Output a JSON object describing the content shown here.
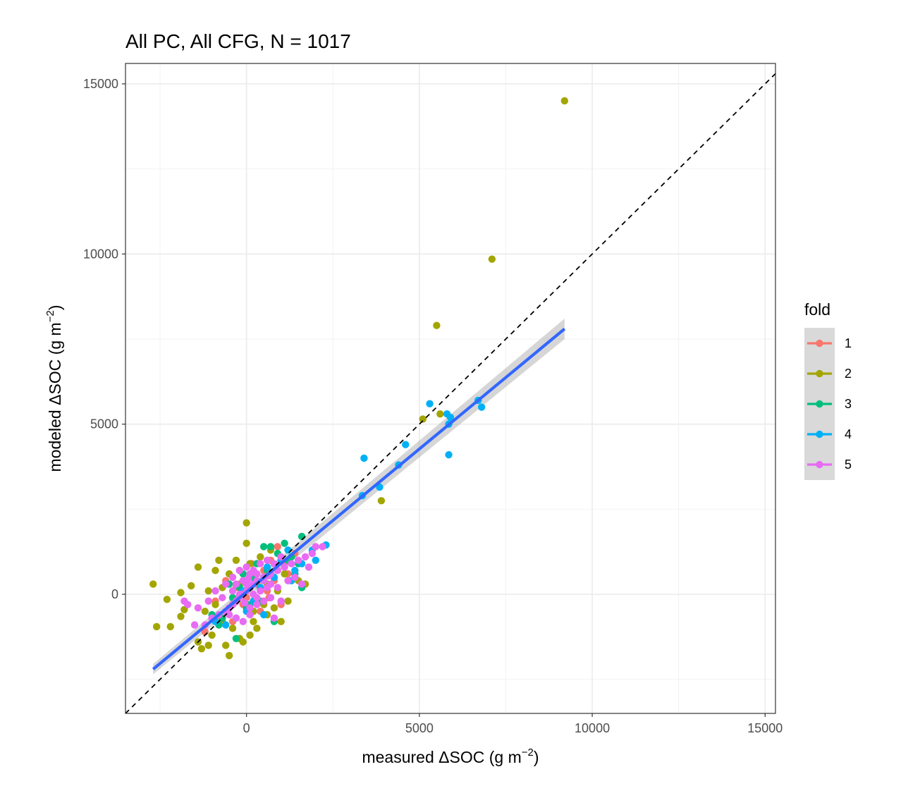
{
  "chart_data": {
    "type": "scatter",
    "title": "All PC, All CFG,  N = 1017",
    "xlabel": {
      "main": "measured ΔSOC (g m",
      "sup": "−2",
      "tail": ")"
    },
    "ylabel": {
      "main": "modeled ΔSOC (g m",
      "sup": "−2",
      "tail": ")"
    },
    "xlim": [
      -3500,
      15300
    ],
    "ylim": [
      -3500,
      15600
    ],
    "x_ticks": [
      0,
      5000,
      10000,
      15000
    ],
    "y_ticks": [
      0,
      5000,
      10000,
      15000
    ],
    "x_tick_labels": [
      "0",
      "5000",
      "10000",
      "15000"
    ],
    "y_tick_labels": [
      "0",
      "5000",
      "10000",
      "15000"
    ],
    "grid": true,
    "legend": {
      "title": "fold",
      "position": "right"
    },
    "reference_line": {
      "type": "1:1",
      "style": "dashed",
      "color": "#000000"
    },
    "fit_line": {
      "x": [
        -2700,
        9200
      ],
      "y": [
        -2200,
        7800
      ],
      "ci_halfwidth_at_ends": [
        150,
        300
      ],
      "color": "#3366FF"
    },
    "series": [
      {
        "name": "1",
        "color": "#F8766D",
        "points": [
          [
            -1200,
            -1100
          ],
          [
            -800,
            -700
          ],
          [
            -500,
            -400
          ],
          [
            -300,
            200
          ],
          [
            -100,
            -300
          ],
          [
            100,
            500
          ],
          [
            200,
            -200
          ],
          [
            300,
            300
          ],
          [
            500,
            700
          ],
          [
            600,
            100
          ],
          [
            700,
            1000
          ],
          [
            800,
            400
          ],
          [
            900,
            1400
          ],
          [
            1100,
            900
          ],
          [
            1200,
            600
          ],
          [
            1400,
            1200
          ],
          [
            -600,
            400
          ],
          [
            0,
            -100
          ],
          [
            400,
            -500
          ],
          [
            -900,
            -200
          ],
          [
            1000,
            -300
          ],
          [
            -200,
            700
          ],
          [
            150,
            900
          ],
          [
            -400,
            -800
          ],
          [
            650,
            -100
          ]
        ]
      },
      {
        "name": "2",
        "color": "#A3A500",
        "points": [
          [
            9200,
            14500
          ],
          [
            7100,
            9850
          ],
          [
            5500,
            7900
          ],
          [
            5100,
            5150
          ],
          [
            5600,
            5300
          ],
          [
            3900,
            2750
          ],
          [
            -2700,
            300
          ],
          [
            -2600,
            -950
          ],
          [
            -2300,
            -150
          ],
          [
            -2200,
            -950
          ],
          [
            -1900,
            50
          ],
          [
            -1900,
            -650
          ],
          [
            -1800,
            -450
          ],
          [
            -1600,
            250
          ],
          [
            -1400,
            -1400
          ],
          [
            -1300,
            -1600
          ],
          [
            -1100,
            -1500
          ],
          [
            -1000,
            -1200
          ],
          [
            -900,
            -300
          ],
          [
            -800,
            1000
          ],
          [
            -700,
            -800
          ],
          [
            -600,
            -1500
          ],
          [
            -500,
            -1800
          ],
          [
            -400,
            -1000
          ],
          [
            -300,
            1000
          ],
          [
            -200,
            -1300
          ],
          [
            -100,
            -1400
          ],
          [
            0,
            2100
          ],
          [
            0,
            1500
          ],
          [
            100,
            -1200
          ],
          [
            200,
            -800
          ],
          [
            300,
            -1000
          ],
          [
            400,
            200
          ],
          [
            500,
            -300
          ],
          [
            600,
            -600
          ],
          [
            700,
            1300
          ],
          [
            800,
            -400
          ],
          [
            900,
            100
          ],
          [
            1000,
            -800
          ],
          [
            1100,
            600
          ],
          [
            1200,
            -200
          ],
          [
            -1400,
            800
          ],
          [
            -1200,
            -500
          ],
          [
            -700,
            200
          ],
          [
            -500,
            600
          ],
          [
            -200,
            300
          ],
          [
            100,
            900
          ],
          [
            400,
            1100
          ],
          [
            1500,
            400
          ],
          [
            1700,
            300
          ],
          [
            -900,
            700
          ],
          [
            -400,
            -300
          ],
          [
            200,
            -500
          ],
          [
            600,
            300
          ],
          [
            -1100,
            100
          ]
        ]
      },
      {
        "name": "3",
        "color": "#00BF7D",
        "points": [
          [
            1600,
            1700
          ],
          [
            1500,
            900
          ],
          [
            1300,
            1100
          ],
          [
            1100,
            1500
          ],
          [
            900,
            1200
          ],
          [
            800,
            -800
          ],
          [
            700,
            1400
          ],
          [
            500,
            1400
          ],
          [
            300,
            900
          ],
          [
            200,
            500
          ],
          [
            0,
            -400
          ],
          [
            -200,
            200
          ],
          [
            -400,
            -100
          ],
          [
            -500,
            300
          ],
          [
            -700,
            -700
          ],
          [
            -800,
            -900
          ],
          [
            -1000,
            -600
          ],
          [
            1600,
            200
          ],
          [
            1400,
            600
          ],
          [
            1200,
            1000
          ],
          [
            -300,
            -1300
          ],
          [
            100,
            -300
          ],
          [
            600,
            700
          ],
          [
            400,
            -200
          ],
          [
            -100,
            600
          ]
        ]
      },
      {
        "name": "4",
        "color": "#00B0F6",
        "points": [
          [
            6800,
            5500
          ],
          [
            6700,
            5700
          ],
          [
            5900,
            5200
          ],
          [
            5850,
            5000
          ],
          [
            5800,
            5300
          ],
          [
            5300,
            5600
          ],
          [
            5850,
            4100
          ],
          [
            4600,
            4400
          ],
          [
            4400,
            3800
          ],
          [
            3850,
            3150
          ],
          [
            3400,
            4000
          ],
          [
            3350,
            2900
          ],
          [
            2300,
            1450
          ],
          [
            2000,
            1000
          ],
          [
            1900,
            1300
          ],
          [
            1600,
            900
          ],
          [
            1400,
            700
          ],
          [
            1200,
            1300
          ],
          [
            1000,
            1000
          ],
          [
            800,
            500
          ],
          [
            600,
            800
          ],
          [
            400,
            200
          ],
          [
            200,
            -200
          ],
          [
            0,
            -500
          ],
          [
            -300,
            -700
          ],
          [
            -600,
            -900
          ],
          [
            -900,
            -800
          ],
          [
            500,
            -600
          ],
          [
            1300,
            400
          ],
          [
            -100,
            100
          ]
        ]
      },
      {
        "name": "5",
        "color": "#E76BF3",
        "points": [
          [
            2200,
            1400
          ],
          [
            2000,
            1400
          ],
          [
            1900,
            1200
          ],
          [
            1700,
            1100
          ],
          [
            1500,
            1000
          ],
          [
            1300,
            900
          ],
          [
            1100,
            800
          ],
          [
            900,
            700
          ],
          [
            700,
            600
          ],
          [
            500,
            500
          ],
          [
            300,
            400
          ],
          [
            200,
            300
          ],
          [
            100,
            200
          ],
          [
            0,
            100
          ],
          [
            -100,
            0
          ],
          [
            -200,
            -100
          ],
          [
            -300,
            -200
          ],
          [
            -400,
            -300
          ],
          [
            -500,
            -400
          ],
          [
            -600,
            -500
          ],
          [
            -800,
            -600
          ],
          [
            -1000,
            -700
          ],
          [
            -1200,
            -900
          ],
          [
            -1400,
            -400
          ],
          [
            -1700,
            -300
          ],
          [
            -1800,
            -200
          ],
          [
            -600,
            300
          ],
          [
            -400,
            500
          ],
          [
            -200,
            700
          ],
          [
            0,
            800
          ],
          [
            200,
            700
          ],
          [
            400,
            900
          ],
          [
            600,
            1000
          ],
          [
            800,
            900
          ],
          [
            1000,
            1100
          ],
          [
            100,
            -400
          ],
          [
            300,
            -300
          ],
          [
            500,
            -200
          ],
          [
            700,
            -100
          ],
          [
            900,
            200
          ],
          [
            -300,
            300
          ],
          [
            -100,
            400
          ],
          [
            100,
            600
          ],
          [
            300,
            600
          ],
          [
            500,
            400
          ],
          [
            700,
            300
          ],
          [
            -1100,
            -200
          ],
          [
            -900,
            100
          ],
          [
            -700,
            -100
          ],
          [
            -500,
            -600
          ],
          [
            -300,
            -700
          ],
          [
            -100,
            -800
          ],
          [
            100,
            -600
          ],
          [
            1200,
            400
          ],
          [
            1400,
            500
          ],
          [
            0,
            300
          ],
          [
            200,
            0
          ],
          [
            400,
            100
          ],
          [
            600,
            200
          ],
          [
            -200,
            0
          ],
          [
            1000,
            -200
          ],
          [
            -1500,
            -900
          ],
          [
            1600,
            300
          ],
          [
            1800,
            800
          ],
          [
            800,
            -700
          ],
          [
            -400,
            100
          ],
          [
            300,
            -100
          ],
          [
            50,
            450
          ],
          [
            -50,
            -250
          ],
          [
            650,
            550
          ]
        ]
      }
    ]
  }
}
